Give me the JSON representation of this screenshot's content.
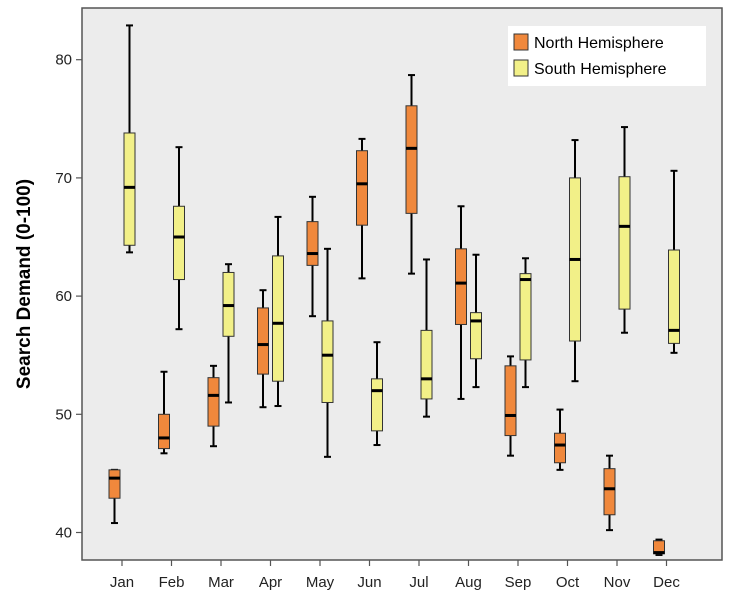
{
  "chart_data": {
    "type": "boxplot",
    "title": "",
    "xlabel": "",
    "ylabel": "Search Demand (0-100)",
    "ylim": [
      38,
      85
    ],
    "yticks": [
      40,
      50,
      60,
      70,
      80
    ],
    "categories": [
      "Jan",
      "Feb",
      "Mar",
      "Apr",
      "May",
      "Jun",
      "Jul",
      "Aug",
      "Sep",
      "Oct",
      "Nov",
      "Dec"
    ],
    "grid": false,
    "legend_position": "top-right",
    "series": [
      {
        "name": "North Hemisphere",
        "color": "#f0883c",
        "boxes": [
          {
            "min": 40.8,
            "q1": 42.9,
            "median": 44.6,
            "q3": 45.3,
            "max": 45.3
          },
          {
            "min": 46.7,
            "q1": 47.1,
            "median": 48.0,
            "q3": 50.0,
            "max": 53.6
          },
          {
            "min": 47.3,
            "q1": 49.0,
            "median": 51.6,
            "q3": 53.1,
            "max": 54.1
          },
          {
            "min": 50.6,
            "q1": 53.4,
            "median": 55.9,
            "q3": 59.0,
            "max": 60.5
          },
          {
            "min": 58.3,
            "q1": 62.6,
            "median": 63.6,
            "q3": 66.3,
            "max": 68.4
          },
          {
            "min": 61.5,
            "q1": 66.0,
            "median": 69.5,
            "q3": 72.3,
            "max": 73.3
          },
          {
            "min": 61.9,
            "q1": 67.0,
            "median": 72.5,
            "q3": 76.1,
            "max": 78.7
          },
          {
            "min": 51.3,
            "q1": 57.6,
            "median": 61.1,
            "q3": 64.0,
            "max": 67.6
          },
          {
            "min": 46.5,
            "q1": 48.2,
            "median": 49.9,
            "q3": 54.1,
            "max": 54.9
          },
          {
            "min": 45.3,
            "q1": 45.9,
            "median": 47.4,
            "q3": 48.4,
            "max": 50.4
          },
          {
            "min": 40.2,
            "q1": 41.5,
            "median": 43.7,
            "q3": 45.4,
            "max": 46.5
          },
          {
            "min": 38.1,
            "q1": 38.2,
            "median": 38.3,
            "q3": 39.3,
            "max": 39.4
          }
        ]
      },
      {
        "name": "South Hemisphere",
        "color": "#f2f088",
        "boxes": [
          {
            "min": 63.7,
            "q1": 64.3,
            "median": 69.2,
            "q3": 73.8,
            "max": 82.9
          },
          {
            "min": 57.2,
            "q1": 61.4,
            "median": 65.0,
            "q3": 67.6,
            "max": 72.6
          },
          {
            "min": 51.0,
            "q1": 56.6,
            "median": 59.2,
            "q3": 62.0,
            "max": 62.7
          },
          {
            "min": 50.7,
            "q1": 52.8,
            "median": 57.7,
            "q3": 63.4,
            "max": 66.7
          },
          {
            "min": 46.4,
            "q1": 51.0,
            "median": 55.0,
            "q3": 57.9,
            "max": 64.0
          },
          {
            "min": 47.4,
            "q1": 48.6,
            "median": 52.0,
            "q3": 53.0,
            "max": 56.1
          },
          {
            "min": 49.8,
            "q1": 51.3,
            "median": 53.0,
            "q3": 57.1,
            "max": 63.1
          },
          {
            "min": 52.3,
            "q1": 54.7,
            "median": 57.9,
            "q3": 58.6,
            "max": 63.5
          },
          {
            "min": 52.3,
            "q1": 54.6,
            "median": 61.4,
            "q3": 61.9,
            "max": 63.2
          },
          {
            "min": 52.8,
            "q1": 56.2,
            "median": 63.1,
            "q3": 70.0,
            "max": 73.2
          },
          {
            "min": 56.9,
            "q1": 58.9,
            "median": 65.9,
            "q3": 70.1,
            "max": 74.3
          },
          {
            "min": 55.2,
            "q1": 56.0,
            "median": 57.1,
            "q3": 63.9,
            "max": 70.6
          }
        ]
      }
    ]
  }
}
